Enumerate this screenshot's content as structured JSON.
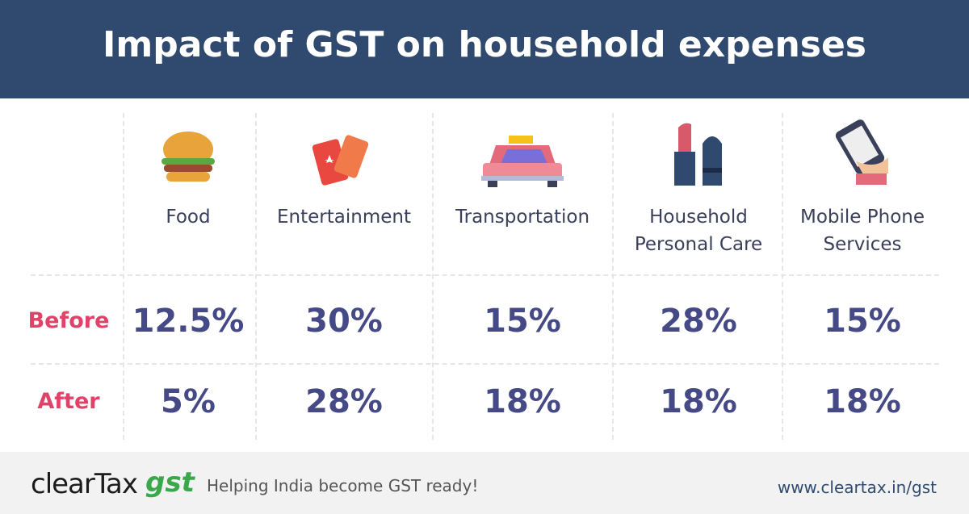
{
  "header": {
    "title": "Impact of GST on household expenses"
  },
  "table": {
    "columns": [
      "Food",
      "Entertainment",
      "Transportation",
      "Household Personal Care",
      "Mobile Phone Services"
    ],
    "rows": [
      {
        "label": "Before",
        "cells": [
          "12.5%",
          "30%",
          "15%",
          "28%",
          "15%"
        ]
      },
      {
        "label": "After",
        "cells": [
          "5%",
          "28%",
          "18%",
          "18%",
          "18%"
        ]
      }
    ]
  },
  "footer": {
    "logo": "clearTax",
    "logo_suffix": "gst",
    "tagline": "Helping India become GST ready!",
    "url": "www.cleartax.in/gst"
  }
}
